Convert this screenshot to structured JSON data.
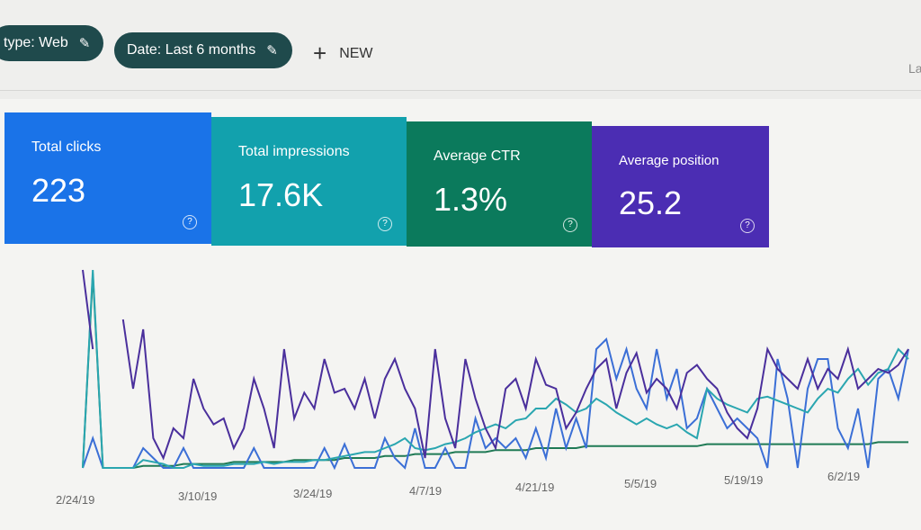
{
  "filters": [
    {
      "label": "type: Web",
      "icon": "pencil-icon"
    },
    {
      "label": "Date: Last 6 months",
      "icon": "pencil-icon"
    }
  ],
  "new_button": {
    "icon": "plus-icon",
    "label": "NEW"
  },
  "right_edge_text": "La",
  "metrics": [
    {
      "label": "Total clicks",
      "value": "223",
      "color": "#1a73e8"
    },
    {
      "label": "Total impressions",
      "value": "17.6K",
      "color": "#12a1ad"
    },
    {
      "label": "Average CTR",
      "value": "1.3%",
      "color": "#0b7a5c"
    },
    {
      "label": "Average position",
      "value": "25.2",
      "color": "#4b2db3"
    }
  ],
  "chart_data": {
    "type": "line",
    "x_tick_labels": [
      "2/24/19",
      "3/10/19",
      "3/24/19",
      "4/7/19",
      "4/21/19",
      "5/5/19",
      "5/19/19",
      "6/2/19"
    ],
    "ylim": [
      0,
      100
    ],
    "series": [
      {
        "name": "Average position",
        "color": "#4a2f9c",
        "values": [
          100,
          60,
          null,
          null,
          75,
          40,
          70,
          15,
          5,
          20,
          15,
          45,
          30,
          22,
          25,
          10,
          20,
          45,
          30,
          10,
          60,
          25,
          38,
          30,
          55,
          38,
          40,
          30,
          45,
          25,
          45,
          55,
          40,
          30,
          5,
          60,
          25,
          10,
          55,
          35,
          20,
          10,
          40,
          45,
          30,
          55,
          42,
          40,
          20,
          28,
          40,
          50,
          55,
          30,
          48,
          58,
          38,
          45,
          40,
          30,
          48,
          52,
          45,
          40,
          28,
          20,
          15,
          30,
          60,
          50,
          45,
          40,
          55,
          40,
          50,
          45,
          60,
          40,
          45,
          50,
          48,
          52,
          60
        ]
      },
      {
        "name": "Impressions",
        "color": "#2aa6b0",
        "values": [
          0,
          100,
          0,
          0,
          0,
          0,
          4,
          3,
          2,
          0,
          0,
          2,
          1,
          1,
          1,
          2,
          2,
          2,
          3,
          2,
          3,
          3,
          3,
          4,
          4,
          5,
          6,
          7,
          8,
          8,
          10,
          12,
          15,
          10,
          9,
          10,
          12,
          13,
          15,
          18,
          20,
          22,
          20,
          24,
          25,
          30,
          30,
          35,
          32,
          28,
          30,
          35,
          32,
          28,
          25,
          22,
          25,
          22,
          20,
          22,
          18,
          15,
          40,
          35,
          32,
          30,
          28,
          35,
          36,
          34,
          32,
          30,
          28,
          35,
          40,
          38,
          45,
          50,
          42,
          48,
          50,
          60,
          55
        ]
      },
      {
        "name": "Clicks",
        "color": "#3b6fd6",
        "values": [
          0,
          15,
          0,
          0,
          0,
          0,
          10,
          5,
          0,
          0,
          10,
          0,
          0,
          0,
          0,
          0,
          0,
          10,
          0,
          0,
          0,
          0,
          0,
          0,
          10,
          0,
          12,
          0,
          0,
          0,
          15,
          5,
          0,
          20,
          0,
          0,
          10,
          0,
          0,
          25,
          10,
          15,
          10,
          15,
          5,
          20,
          5,
          30,
          10,
          25,
          10,
          60,
          65,
          45,
          60,
          40,
          30,
          60,
          35,
          50,
          20,
          25,
          40,
          30,
          20,
          25,
          20,
          15,
          0,
          55,
          35,
          0,
          40,
          55,
          55,
          20,
          10,
          30,
          0,
          45,
          50,
          35,
          60
        ]
      },
      {
        "name": "CTR",
        "color": "#1f7a55",
        "values": [
          0,
          98,
          0,
          0,
          0,
          0,
          1,
          1,
          1,
          1,
          2,
          2,
          2,
          2,
          2,
          3,
          3,
          3,
          3,
          3,
          3,
          4,
          4,
          4,
          4,
          4,
          5,
          5,
          5,
          5,
          6,
          6,
          6,
          7,
          7,
          7,
          7,
          8,
          8,
          8,
          8,
          9,
          9,
          9,
          9,
          10,
          10,
          10,
          10,
          10,
          11,
          11,
          11,
          11,
          11,
          11,
          11,
          11,
          11,
          11,
          11,
          11,
          12,
          12,
          12,
          12,
          12,
          12,
          12,
          12,
          12,
          12,
          12,
          12,
          12,
          12,
          12,
          12,
          12,
          13,
          13,
          13,
          13
        ]
      }
    ]
  }
}
